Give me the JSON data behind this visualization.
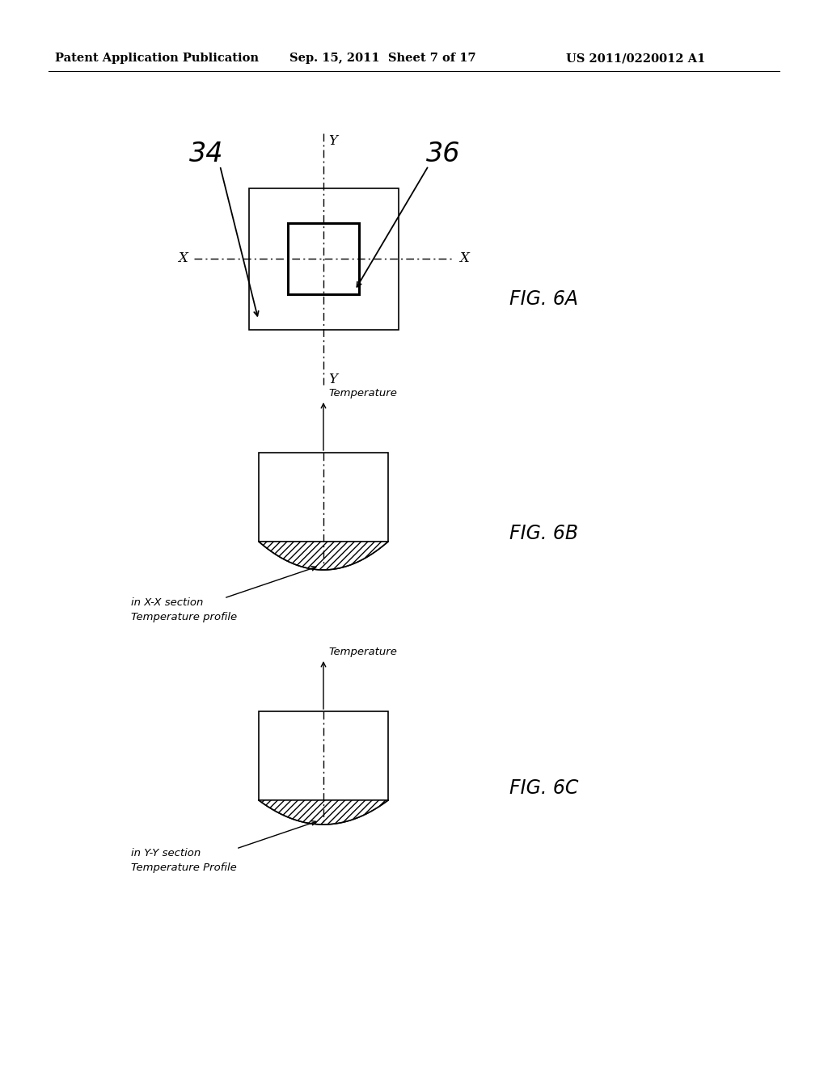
{
  "bg_color": "#ffffff",
  "header_left": "Patent Application Publication",
  "header_mid": "Sep. 15, 2011  Sheet 7 of 17",
  "header_right": "US 2011/0220012 A1",
  "fig6a_label": "FIG. 6A",
  "fig6b_label": "FIG. 6B",
  "fig6c_label": "FIG. 6C",
  "label_34": "34",
  "label_36": "36",
  "fig6b_text1": "Temperature profile",
  "fig6b_text2": "in X-X section",
  "fig6c_text1": "Temperature Profile",
  "fig6c_text2": "in Y-Y section",
  "temp_label": "Temperature"
}
